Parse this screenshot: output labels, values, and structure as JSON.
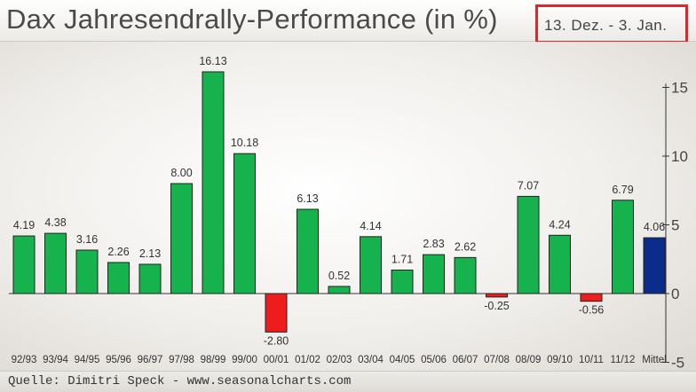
{
  "header": {
    "title": "Dax Jahresendrally-Performance (in %)",
    "period": "13. Dez. - 3. Jan."
  },
  "footer": {
    "source": "Quelle: Dimitri Speck - www.seasonalcharts.com"
  },
  "colors": {
    "positive": "#16b24e",
    "negative": "#ee1c1c",
    "average": "#0a2c8a",
    "highlight_border": "#e1262a"
  },
  "chart_data": {
    "type": "bar",
    "title": "Dax Jahresendrally-Performance (in %)",
    "categories": [
      "92/93",
      "93/94",
      "94/95",
      "95/96",
      "96/97",
      "97/98",
      "98/99",
      "99/00",
      "00/01",
      "01/02",
      "02/03",
      "03/04",
      "04/05",
      "05/06",
      "06/07",
      "07/08",
      "08/09",
      "09/10",
      "10/11",
      "11/12",
      "Mittel"
    ],
    "values": [
      4.19,
      4.38,
      3.16,
      2.26,
      2.13,
      8.0,
      16.13,
      10.18,
      -2.8,
      6.13,
      0.52,
      4.14,
      1.71,
      2.83,
      2.62,
      -0.25,
      7.07,
      4.24,
      -0.56,
      6.79,
      4.06
    ],
    "value_labels": [
      "4.19",
      "4.38",
      "3.16",
      "2.26",
      "2.13",
      "8.00",
      "16.13",
      "10.18",
      "-2.80",
      "6.13",
      "0.52",
      "4.14",
      "1.71",
      "2.83",
      "2.62",
      "-0.25",
      "7.07",
      "4.24",
      "-0.56",
      "6.79",
      "4.06"
    ],
    "average_category": "Mittel",
    "ylim": [
      -5,
      15
    ],
    "yticks": [
      -5,
      0,
      5,
      10,
      15
    ],
    "ytick_labels": [
      "-5",
      "0",
      "5",
      "10",
      "15"
    ],
    "y_axis_side": "right",
    "grid": false,
    "legend": "none"
  }
}
